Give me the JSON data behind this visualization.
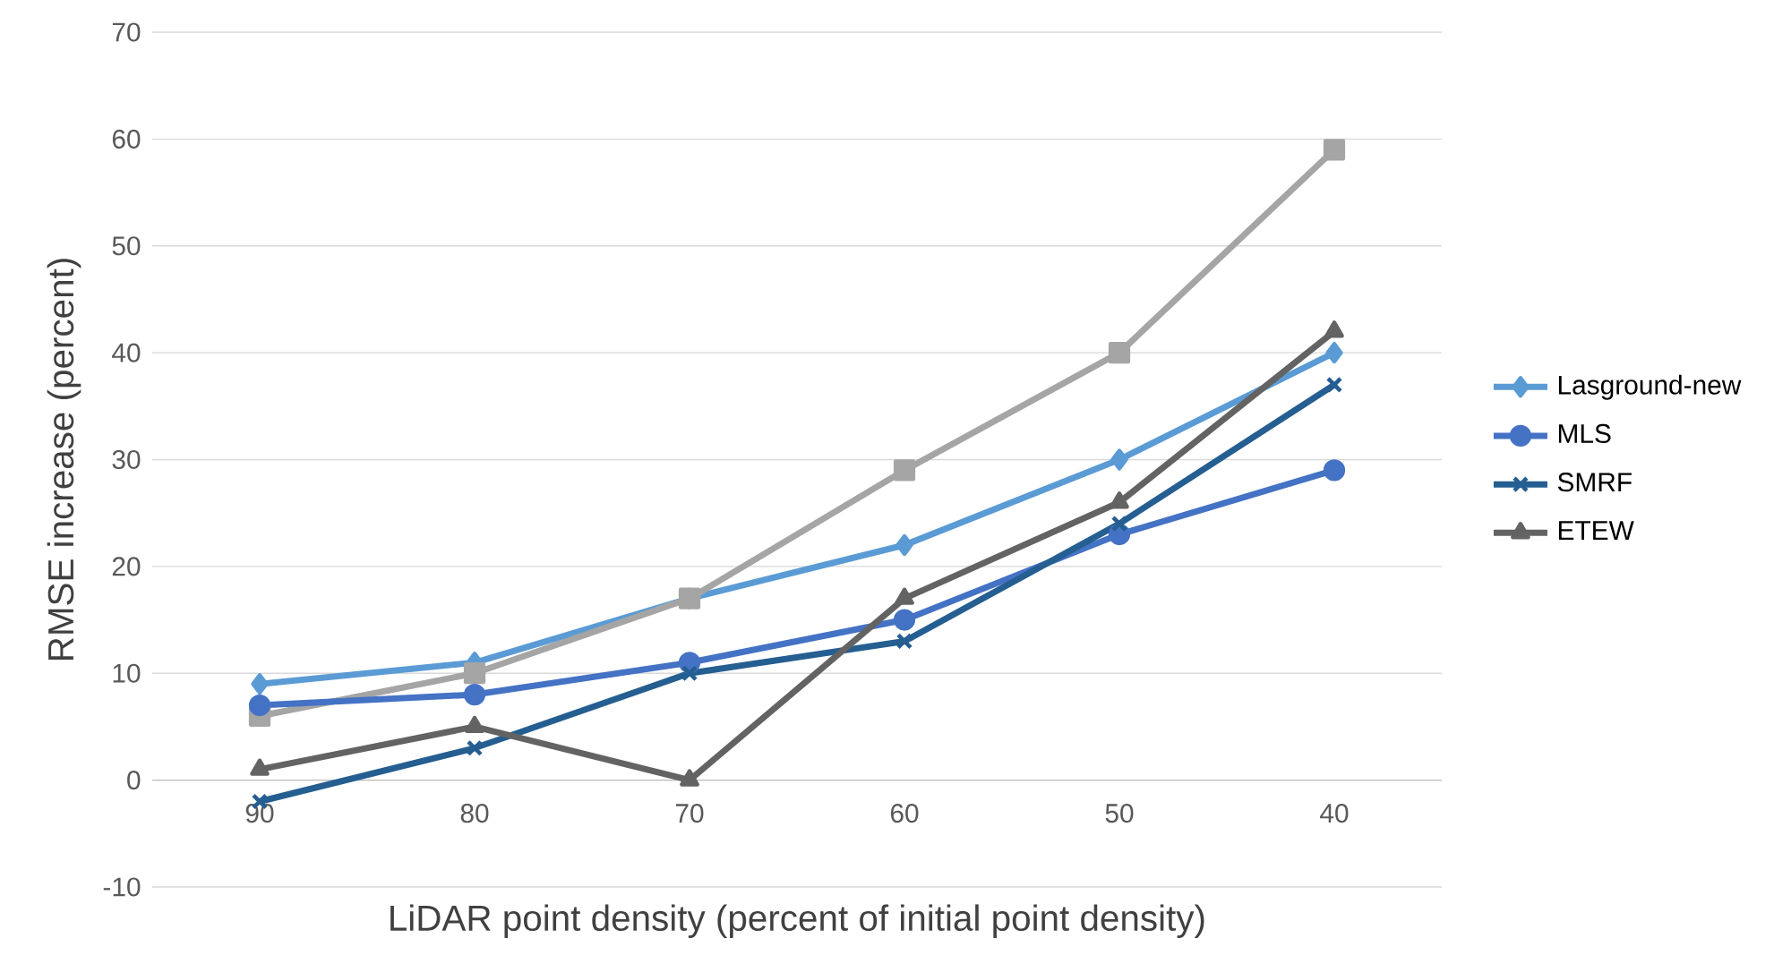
{
  "chart_data": {
    "type": "line",
    "xlabel": "LiDAR point density (percent of initial point density)",
    "ylabel": "RMSE increase (percent)",
    "categories": [
      "90",
      "80",
      "70",
      "60",
      "50",
      "40"
    ],
    "series": [
      {
        "name": "Lasground-new",
        "color": "#5b9bd5",
        "marker": "diamond",
        "values": [
          9,
          11,
          17,
          22,
          30,
          40
        ]
      },
      {
        "color": "#a5a5a5",
        "marker": "square",
        "values": [
          6,
          10,
          17,
          29,
          40,
          59
        ]
      },
      {
        "name": "MLS",
        "color": "#4472c4",
        "marker": "circle",
        "values": [
          7,
          8,
          11,
          15,
          23,
          29
        ]
      },
      {
        "name": "SMRF",
        "color": "#255e91",
        "marker": "cross",
        "values": [
          -2,
          3,
          10,
          13,
          24,
          37
        ]
      },
      {
        "name": "ETEW",
        "color": "#636363",
        "marker": "triangle",
        "values": [
          1,
          5,
          0,
          17,
          26,
          42
        ]
      }
    ],
    "ylim": [
      -10,
      70
    ],
    "yticks": [
      -10,
      0,
      10,
      20,
      30,
      40,
      50,
      60,
      70
    ],
    "grid": "y",
    "legend": "right",
    "line_style": "solid"
  }
}
